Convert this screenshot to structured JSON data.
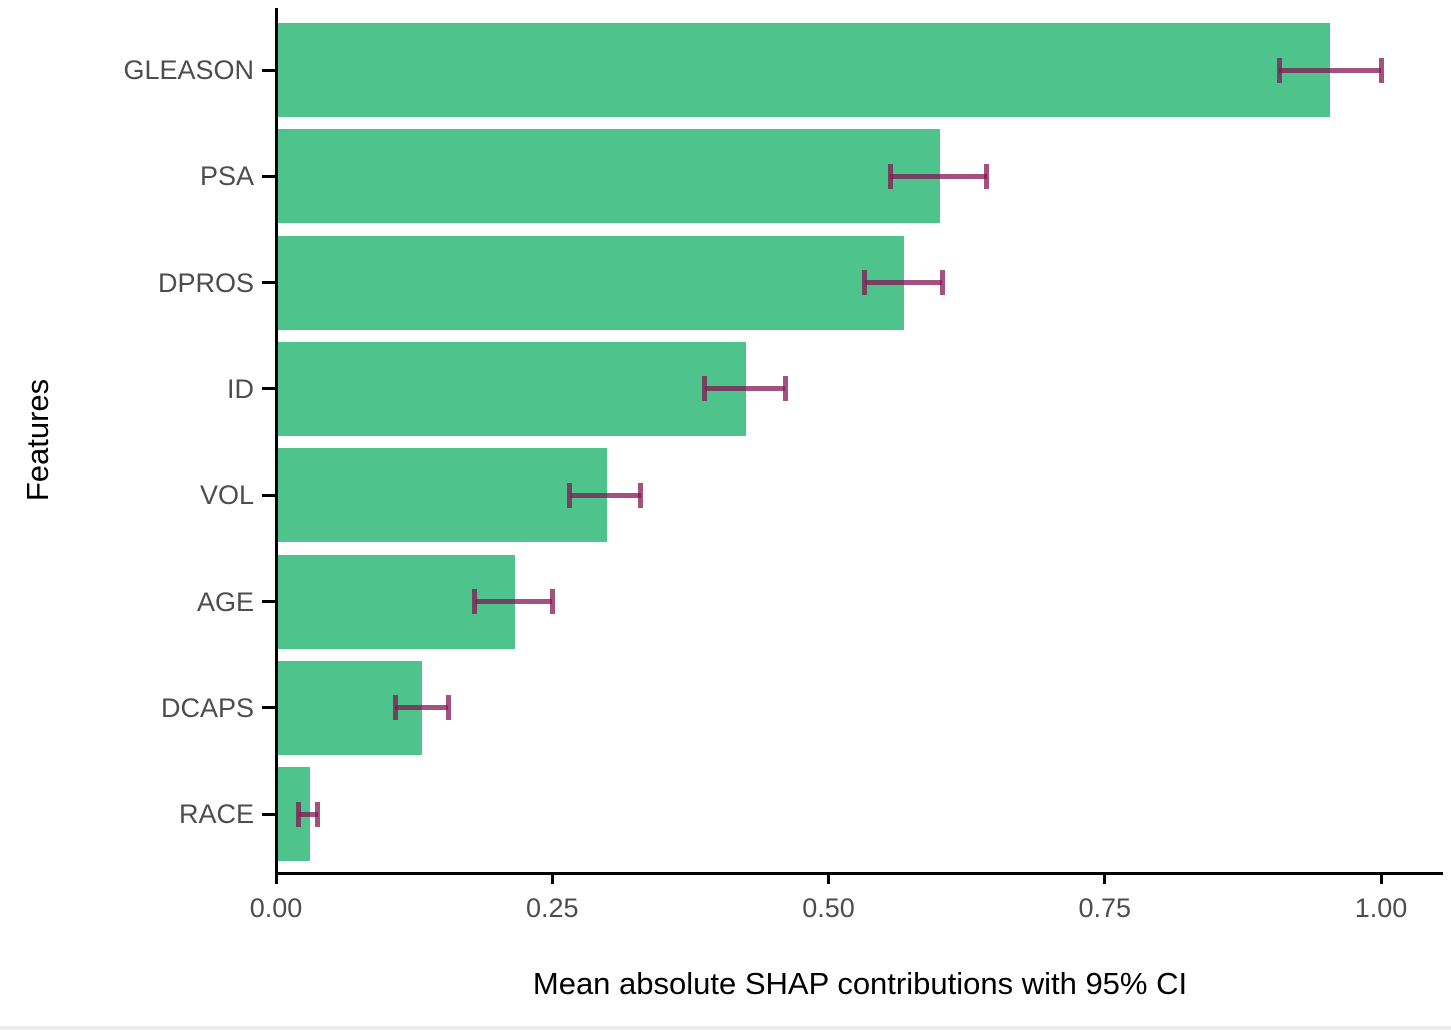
{
  "chart_data": {
    "type": "bar",
    "orientation": "horizontal",
    "title": "",
    "xlabel": "Mean absolute SHAP contributions with 95% CI",
    "ylabel": "Features",
    "categories": [
      "GLEASON",
      "PSA",
      "DPROS",
      "ID",
      "VOL",
      "AGE",
      "DCAPS",
      "RACE"
    ],
    "values": [
      0.953,
      0.6,
      0.567,
      0.424,
      0.299,
      0.215,
      0.131,
      0.03
    ],
    "ci_low": [
      0.908,
      0.556,
      0.533,
      0.388,
      0.266,
      0.18,
      0.108,
      0.02
    ],
    "ci_high": [
      1.0,
      0.643,
      0.603,
      0.461,
      0.33,
      0.25,
      0.156,
      0.038
    ],
    "error_bar_label": "95% CI",
    "x_ticks": [
      "0.00",
      "0.25",
      "0.50",
      "0.75",
      "1.00"
    ],
    "x_tick_values": [
      0,
      0.25,
      0.5,
      0.75,
      1.0
    ],
    "xlim": [
      0,
      1.055
    ],
    "grid": false,
    "legend": "none",
    "bar_color": "#4ec48c",
    "error_color": "rgba(132,23,84,0.75)",
    "axis_color": "#000000",
    "tick_text_color": "#4d4d4d",
    "title_text_color": "#000000"
  }
}
